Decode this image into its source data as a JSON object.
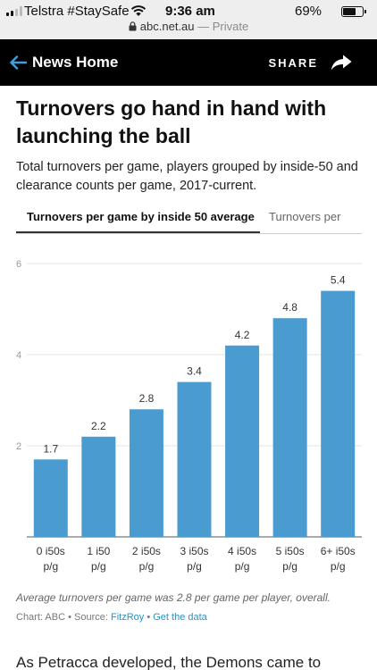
{
  "status_bar": {
    "carrier": "Telstra #StaySafe",
    "time": "9:36 am",
    "battery": "69%",
    "battery_level": 0.69,
    "url": "abc.net.au",
    "url_suffix": " — Private"
  },
  "nav": {
    "back_label": "News Home",
    "share_label": "SHARE"
  },
  "article": {
    "headline": "Turnovers go hand in hand with launching the ball",
    "subtitle": "Total turnovers per game, players grouped by inside-50 and clearance counts per game, 2017-current.",
    "tabs": [
      {
        "label": "Turnovers per game by inside 50 average",
        "active": true
      },
      {
        "label": "Turnovers per",
        "active": false
      }
    ],
    "footnote": "Average turnovers per game was 2.8 per game per player, overall.",
    "credits": {
      "chart_label": "Chart: ABC",
      "source_label": "Source: ",
      "source_link": "FitzRoy",
      "data_link": "Get the data"
    },
    "body_start": "As Petracca developed, the Demons came to"
  },
  "chart_data": {
    "type": "bar",
    "categories": [
      [
        "0 i50s",
        "p/g"
      ],
      [
        "1 i50",
        "p/g"
      ],
      [
        "2 i50s",
        "p/g"
      ],
      [
        "3 i50s",
        "p/g"
      ],
      [
        "4 i50s",
        "p/g"
      ],
      [
        "5 i50s",
        "p/g"
      ],
      [
        "6+ i50s",
        "p/g"
      ]
    ],
    "values": [
      1.7,
      2.2,
      2.8,
      3.4,
      4.2,
      4.8,
      5.4
    ],
    "value_labels": [
      "1.7",
      "2.2",
      "2.8",
      "3.4",
      "4.2",
      "4.8",
      "5.4"
    ],
    "y_ticks": [
      2,
      4,
      6
    ],
    "ylim": [
      0,
      6
    ],
    "grid": true,
    "bar_color": "#4a9bcf"
  }
}
